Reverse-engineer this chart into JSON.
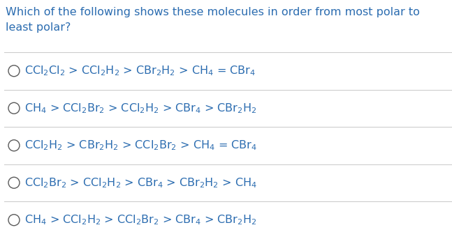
{
  "title_line1": "Which of the following shows these molecules in order from most polar to",
  "title_line2": "least polar?",
  "text_color": "#2b6cb0",
  "title_fontsize": 11.5,
  "option_fontsize": 11.5,
  "background_color": "#ffffff",
  "circle_color": "#5a5a5a",
  "divider_color": "#c8c8c8",
  "options": [
    "CCl$_2$Cl$_2$ > CCl$_2$H$_2$ > CBr$_2$H$_2$ > CH$_4$ = CBr$_4$",
    "CH$_4$ > CCl$_2$Br$_2$ > CCl$_2$H$_2$ > CBr$_4$ > CBr$_2$H$_2$",
    "CCl$_2$H$_2$ > CBr$_2$H$_2$ > CCl$_2$Br$_2$ > CH$_4$ = CBr$_4$",
    "CCl$_2$Br$_2$ > CCl$_2$H$_2$ > CBr$_4$ > CBr$_2$H$_2$ > CH$_4$",
    "CH$_4$ > CCl$_2$H$_2$ > CCl$_2$Br$_2$ > CBr$_4$ > CBr$_2$H$_2$"
  ]
}
